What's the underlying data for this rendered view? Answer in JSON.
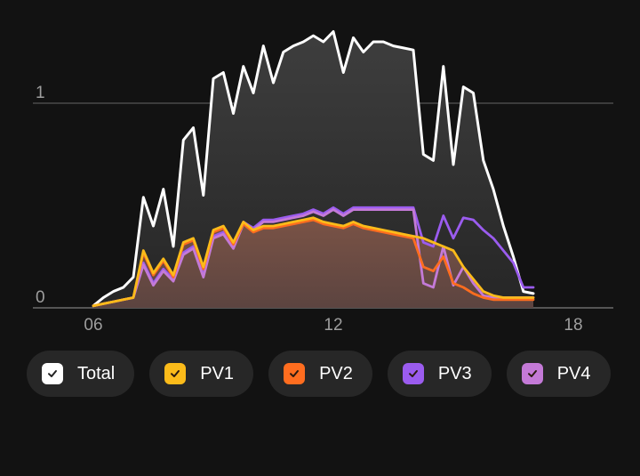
{
  "chart_data": {
    "type": "area",
    "y_ticks": [
      "0",
      "1"
    ],
    "x_ticks": [
      "06",
      "12",
      "18"
    ],
    "xlim": [
      6,
      18
    ],
    "ylim": [
      0,
      1.35
    ],
    "grid": true,
    "legend_position": "bottom",
    "x": [
      6.0,
      6.25,
      6.5,
      6.75,
      7.0,
      7.25,
      7.5,
      7.75,
      8.0,
      8.25,
      8.5,
      8.75,
      9.0,
      9.25,
      9.5,
      9.75,
      10.0,
      10.25,
      10.5,
      10.75,
      11.0,
      11.25,
      11.5,
      11.75,
      12.0,
      12.25,
      12.5,
      12.75,
      13.0,
      13.25,
      13.5,
      13.75,
      14.0,
      14.25,
      14.5,
      14.75,
      15.0,
      15.25,
      15.5,
      15.75,
      16.0,
      16.25,
      16.5,
      16.75,
      17.0
    ],
    "series": [
      {
        "name": "Total",
        "color": "#ffffff",
        "values": [
          0.01,
          0.05,
          0.08,
          0.1,
          0.15,
          0.54,
          0.4,
          0.58,
          0.3,
          0.82,
          0.88,
          0.55,
          1.12,
          1.15,
          0.95,
          1.18,
          1.05,
          1.28,
          1.1,
          1.25,
          1.28,
          1.3,
          1.33,
          1.3,
          1.35,
          1.15,
          1.32,
          1.25,
          1.3,
          1.3,
          1.28,
          1.27,
          1.26,
          0.75,
          0.72,
          1.18,
          0.7,
          1.08,
          1.05,
          0.72,
          0.58,
          0.4,
          0.25,
          0.08,
          0.07
        ]
      },
      {
        "name": "PV1",
        "color": "#fbbb1a",
        "values": [
          0.01,
          0.02,
          0.03,
          0.04,
          0.05,
          0.28,
          0.17,
          0.24,
          0.16,
          0.32,
          0.34,
          0.2,
          0.38,
          0.4,
          0.32,
          0.42,
          0.38,
          0.4,
          0.4,
          0.41,
          0.42,
          0.43,
          0.44,
          0.42,
          0.41,
          0.4,
          0.42,
          0.4,
          0.39,
          0.38,
          0.37,
          0.36,
          0.35,
          0.34,
          0.32,
          0.3,
          0.28,
          0.2,
          0.14,
          0.08,
          0.06,
          0.05,
          0.05,
          0.05,
          0.05
        ]
      },
      {
        "name": "PV2",
        "color": "#ff6d1f",
        "values": [
          0.01,
          0.02,
          0.03,
          0.04,
          0.05,
          0.27,
          0.16,
          0.23,
          0.15,
          0.31,
          0.33,
          0.19,
          0.37,
          0.39,
          0.31,
          0.41,
          0.37,
          0.39,
          0.39,
          0.4,
          0.41,
          0.42,
          0.43,
          0.41,
          0.4,
          0.39,
          0.41,
          0.39,
          0.38,
          0.37,
          0.36,
          0.35,
          0.34,
          0.2,
          0.18,
          0.25,
          0.12,
          0.1,
          0.07,
          0.05,
          0.04,
          0.04,
          0.04,
          0.04,
          0.04
        ]
      },
      {
        "name": "PV3",
        "color": "#9b5cef",
        "values": [
          0.01,
          0.02,
          0.03,
          0.04,
          0.05,
          0.22,
          0.12,
          0.19,
          0.14,
          0.27,
          0.3,
          0.16,
          0.35,
          0.37,
          0.3,
          0.42,
          0.39,
          0.43,
          0.43,
          0.44,
          0.45,
          0.46,
          0.48,
          0.46,
          0.49,
          0.46,
          0.49,
          0.49,
          0.49,
          0.49,
          0.49,
          0.49,
          0.49,
          0.32,
          0.3,
          0.45,
          0.34,
          0.44,
          0.43,
          0.38,
          0.34,
          0.28,
          0.22,
          0.1,
          0.1
        ]
      },
      {
        "name": "PV4",
        "color": "#c47ad7",
        "values": [
          0.01,
          0.02,
          0.03,
          0.04,
          0.05,
          0.21,
          0.11,
          0.18,
          0.13,
          0.26,
          0.29,
          0.15,
          0.34,
          0.36,
          0.29,
          0.41,
          0.38,
          0.42,
          0.42,
          0.43,
          0.44,
          0.45,
          0.47,
          0.45,
          0.48,
          0.45,
          0.48,
          0.48,
          0.48,
          0.48,
          0.48,
          0.48,
          0.48,
          0.12,
          0.1,
          0.3,
          0.11,
          0.2,
          0.12,
          0.06,
          0.05,
          0.05,
          0.05,
          0.05,
          0.05
        ]
      }
    ]
  }
}
